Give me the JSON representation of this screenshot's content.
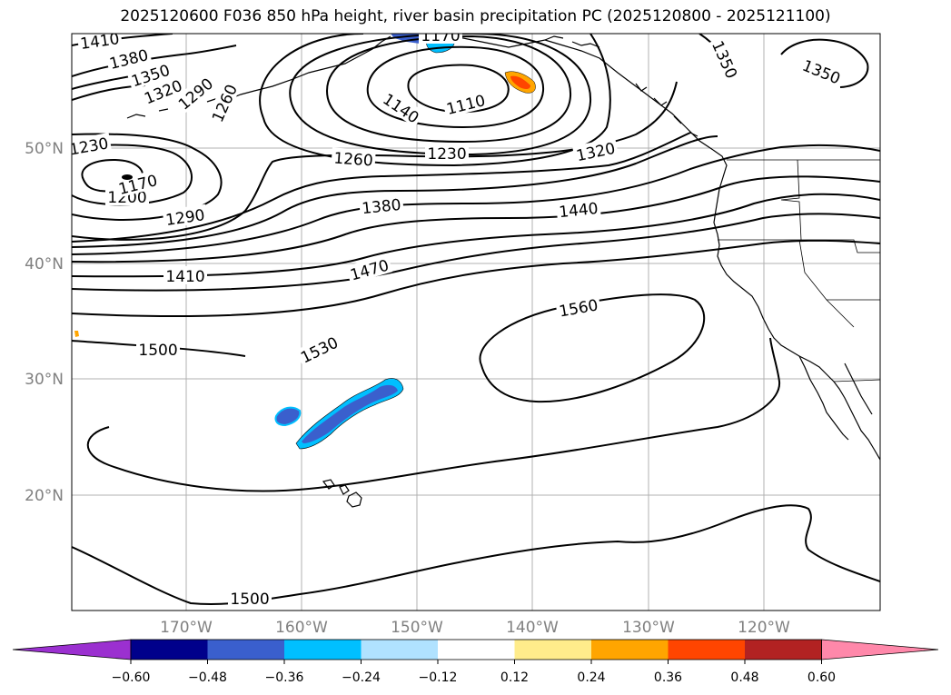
{
  "title": "2025120600 F036 850 hPa height, river basin precipitation PC (2025120800 - 2025121100)",
  "map": {
    "lat_labels": [
      "50°N",
      "40°N",
      "30°N",
      "20°N"
    ],
    "lon_labels": [
      "170°W",
      "160°W",
      "150°W",
      "140°W",
      "130°W",
      "120°W"
    ],
    "contour_labels": [
      "1410",
      "1380",
      "1350",
      "1320",
      "1290",
      "1260",
      "1170",
      "1110",
      "1140",
      "1230",
      "1260",
      "1230",
      "1200",
      "1170",
      "1290",
      "1380",
      "1320",
      "1440",
      "1350",
      "1350",
      "1410",
      "1470",
      "1560",
      "1500",
      "1530",
      "1500"
    ],
    "grid_color": "#b0b0b0",
    "contour_color": "#000000"
  },
  "colorbar": {
    "ticks": [
      "−0.60",
      "−0.48",
      "−0.36",
      "−0.24",
      "−0.12",
      "0.12",
      "0.24",
      "0.36",
      "0.48",
      "0.60"
    ],
    "colors": [
      "#9b30d0",
      "#00008b",
      "#3a5fcd",
      "#00bfff",
      "#b0e2ff",
      "#ffffff",
      "#ffec8b",
      "#ffa500",
      "#ff4500",
      "#b22222",
      "#ff88aa"
    ]
  }
}
